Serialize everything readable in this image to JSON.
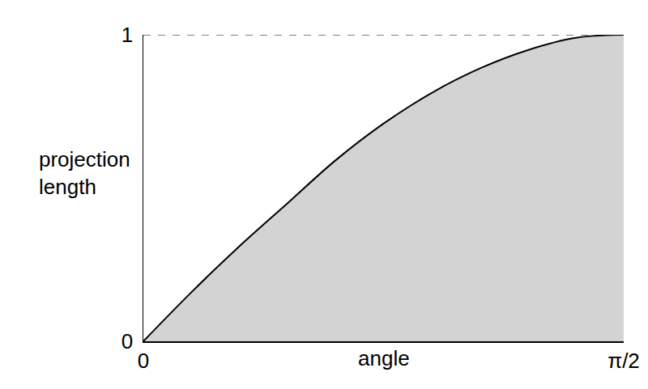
{
  "chart_data": {
    "type": "area",
    "xlabel": "angle",
    "ylabel": "projection\nlength",
    "x": [
      0,
      0.157,
      0.314,
      0.471,
      0.628,
      0.785,
      0.942,
      1.1,
      1.257,
      1.414,
      1.5708
    ],
    "series": [
      {
        "type": "area",
        "color": "#d3d3d3",
        "values": [
          0,
          0.16,
          0.31,
          0.45,
          0.59,
          0.71,
          0.81,
          0.89,
          0.95,
          0.99,
          1
        ]
      },
      {
        "type": "line",
        "line_style": "dashed",
        "color": "#000000",
        "values": [
          1,
          1,
          1,
          1,
          1,
          1,
          1,
          1,
          1,
          1,
          1
        ]
      }
    ],
    "xlim": [
      0,
      1.5708
    ],
    "ylim": [
      0,
      1
    ],
    "xticks": [
      0,
      {
        "value": 1.5708,
        "label": "π/2"
      }
    ],
    "yticks": [
      0,
      1
    ],
    "grid": false
  }
}
